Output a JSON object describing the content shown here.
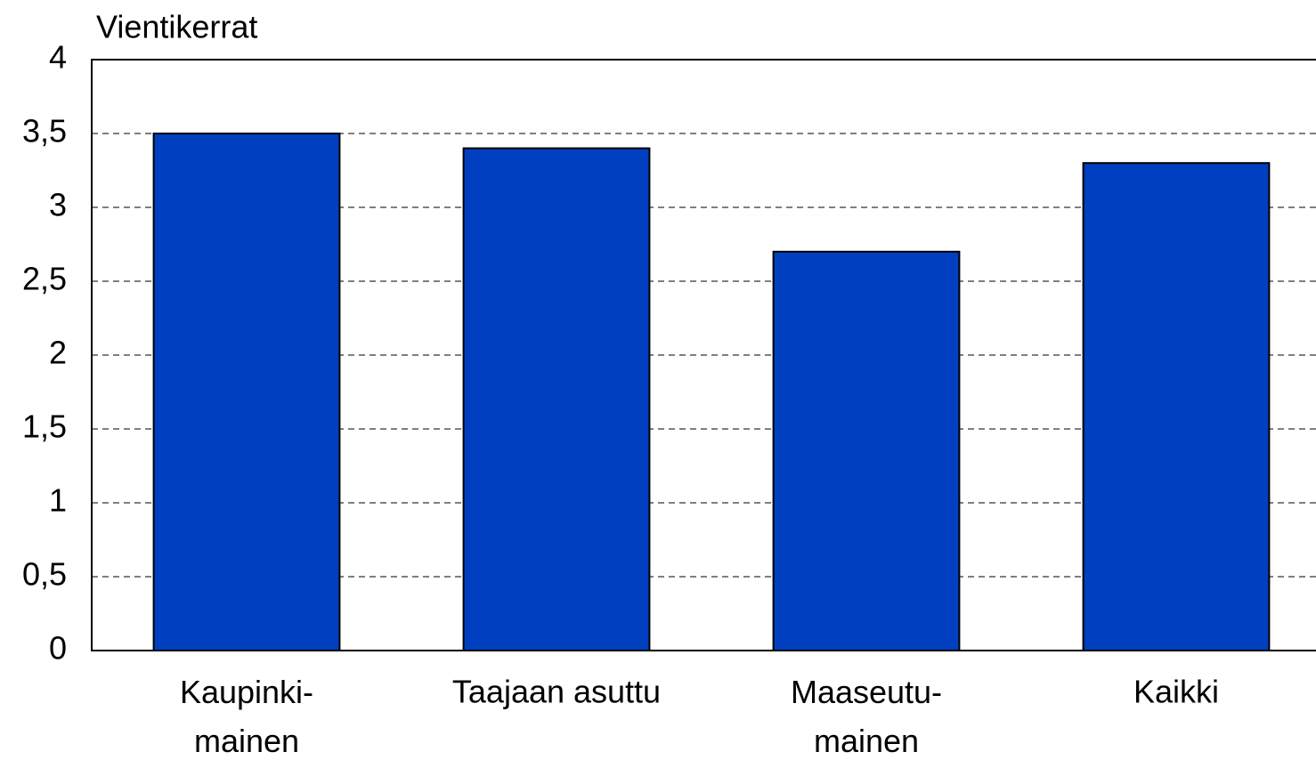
{
  "chart_data": {
    "type": "bar",
    "y_label": "Vientikerrat",
    "categories": [
      "Kaupinki-\nmainen",
      "Taajaan asuttu",
      "Maaseutu-\nmainen",
      "Kaikki"
    ],
    "values": [
      3.5,
      3.4,
      2.7,
      3.3
    ],
    "color": "#0040c0",
    "ylim": [
      0,
      4
    ],
    "yticks": [
      0,
      {
        "value": 0.5,
        "label": "0,5"
      },
      1,
      {
        "value": 1.5,
        "label": "1,5"
      },
      2,
      {
        "value": 2.5,
        "label": "2,5"
      },
      3,
      {
        "value": 3.5,
        "label": "3,5"
      },
      4
    ],
    "grid": true
  }
}
